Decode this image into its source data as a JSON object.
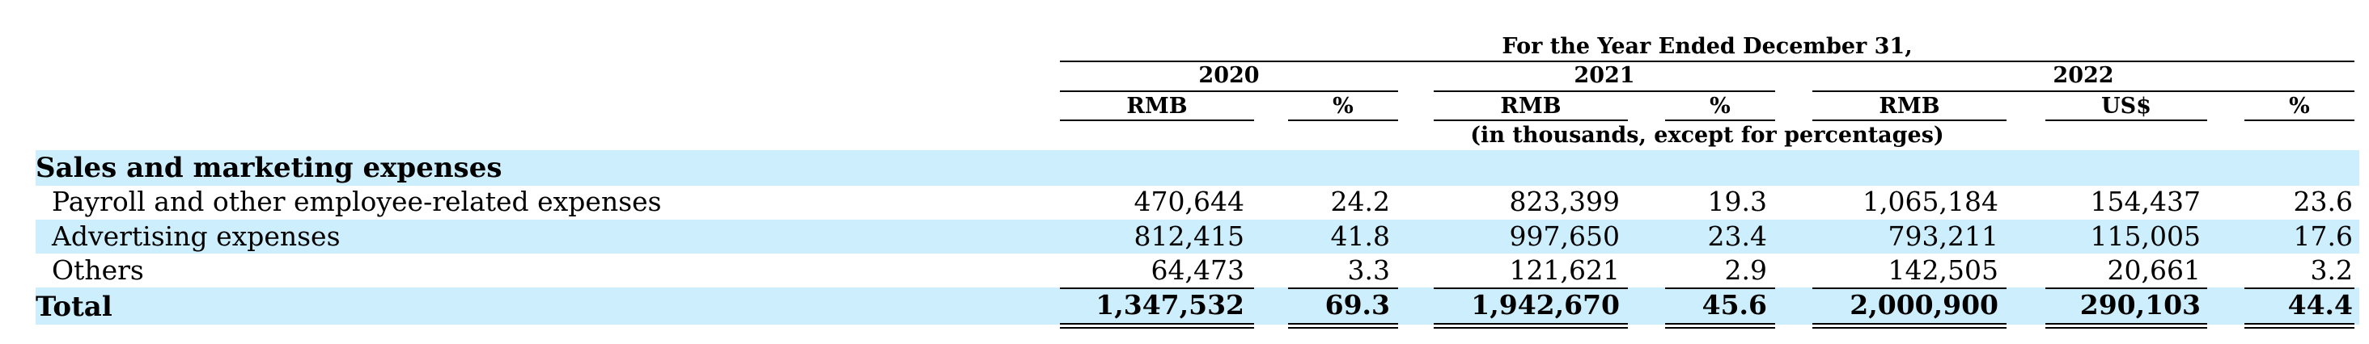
{
  "header": {
    "period_title": "For the Year Ended December 31,",
    "years": [
      "2020",
      "2021",
      "2022"
    ],
    "subheaders": [
      "RMB",
      "%",
      "RMB",
      "%",
      "RMB",
      "US$",
      "%"
    ],
    "unit_note": "(in thousands, except for percentages)"
  },
  "section_title": "Sales and marketing expenses",
  "rows": [
    {
      "label": "Payroll and other employee-related expenses",
      "values": [
        "470,644",
        "24.2",
        "823,399",
        "19.3",
        "1,065,184",
        "154,437",
        "23.6"
      ]
    },
    {
      "label": "Advertising expenses",
      "values": [
        "812,415",
        "41.8",
        "997,650",
        "23.4",
        "793,211",
        "115,005",
        "17.6"
      ]
    },
    {
      "label": "Others",
      "values": [
        "64,473",
        "3.3",
        "121,621",
        "2.9",
        "142,505",
        "20,661",
        "3.2"
      ]
    }
  ],
  "total": {
    "label": "Total",
    "values": [
      "1,347,532",
      "69.3",
      "1,942,670",
      "45.6",
      "2,000,900",
      "290,103",
      "44.4"
    ]
  },
  "colors": {
    "band": "#cdeefc"
  }
}
